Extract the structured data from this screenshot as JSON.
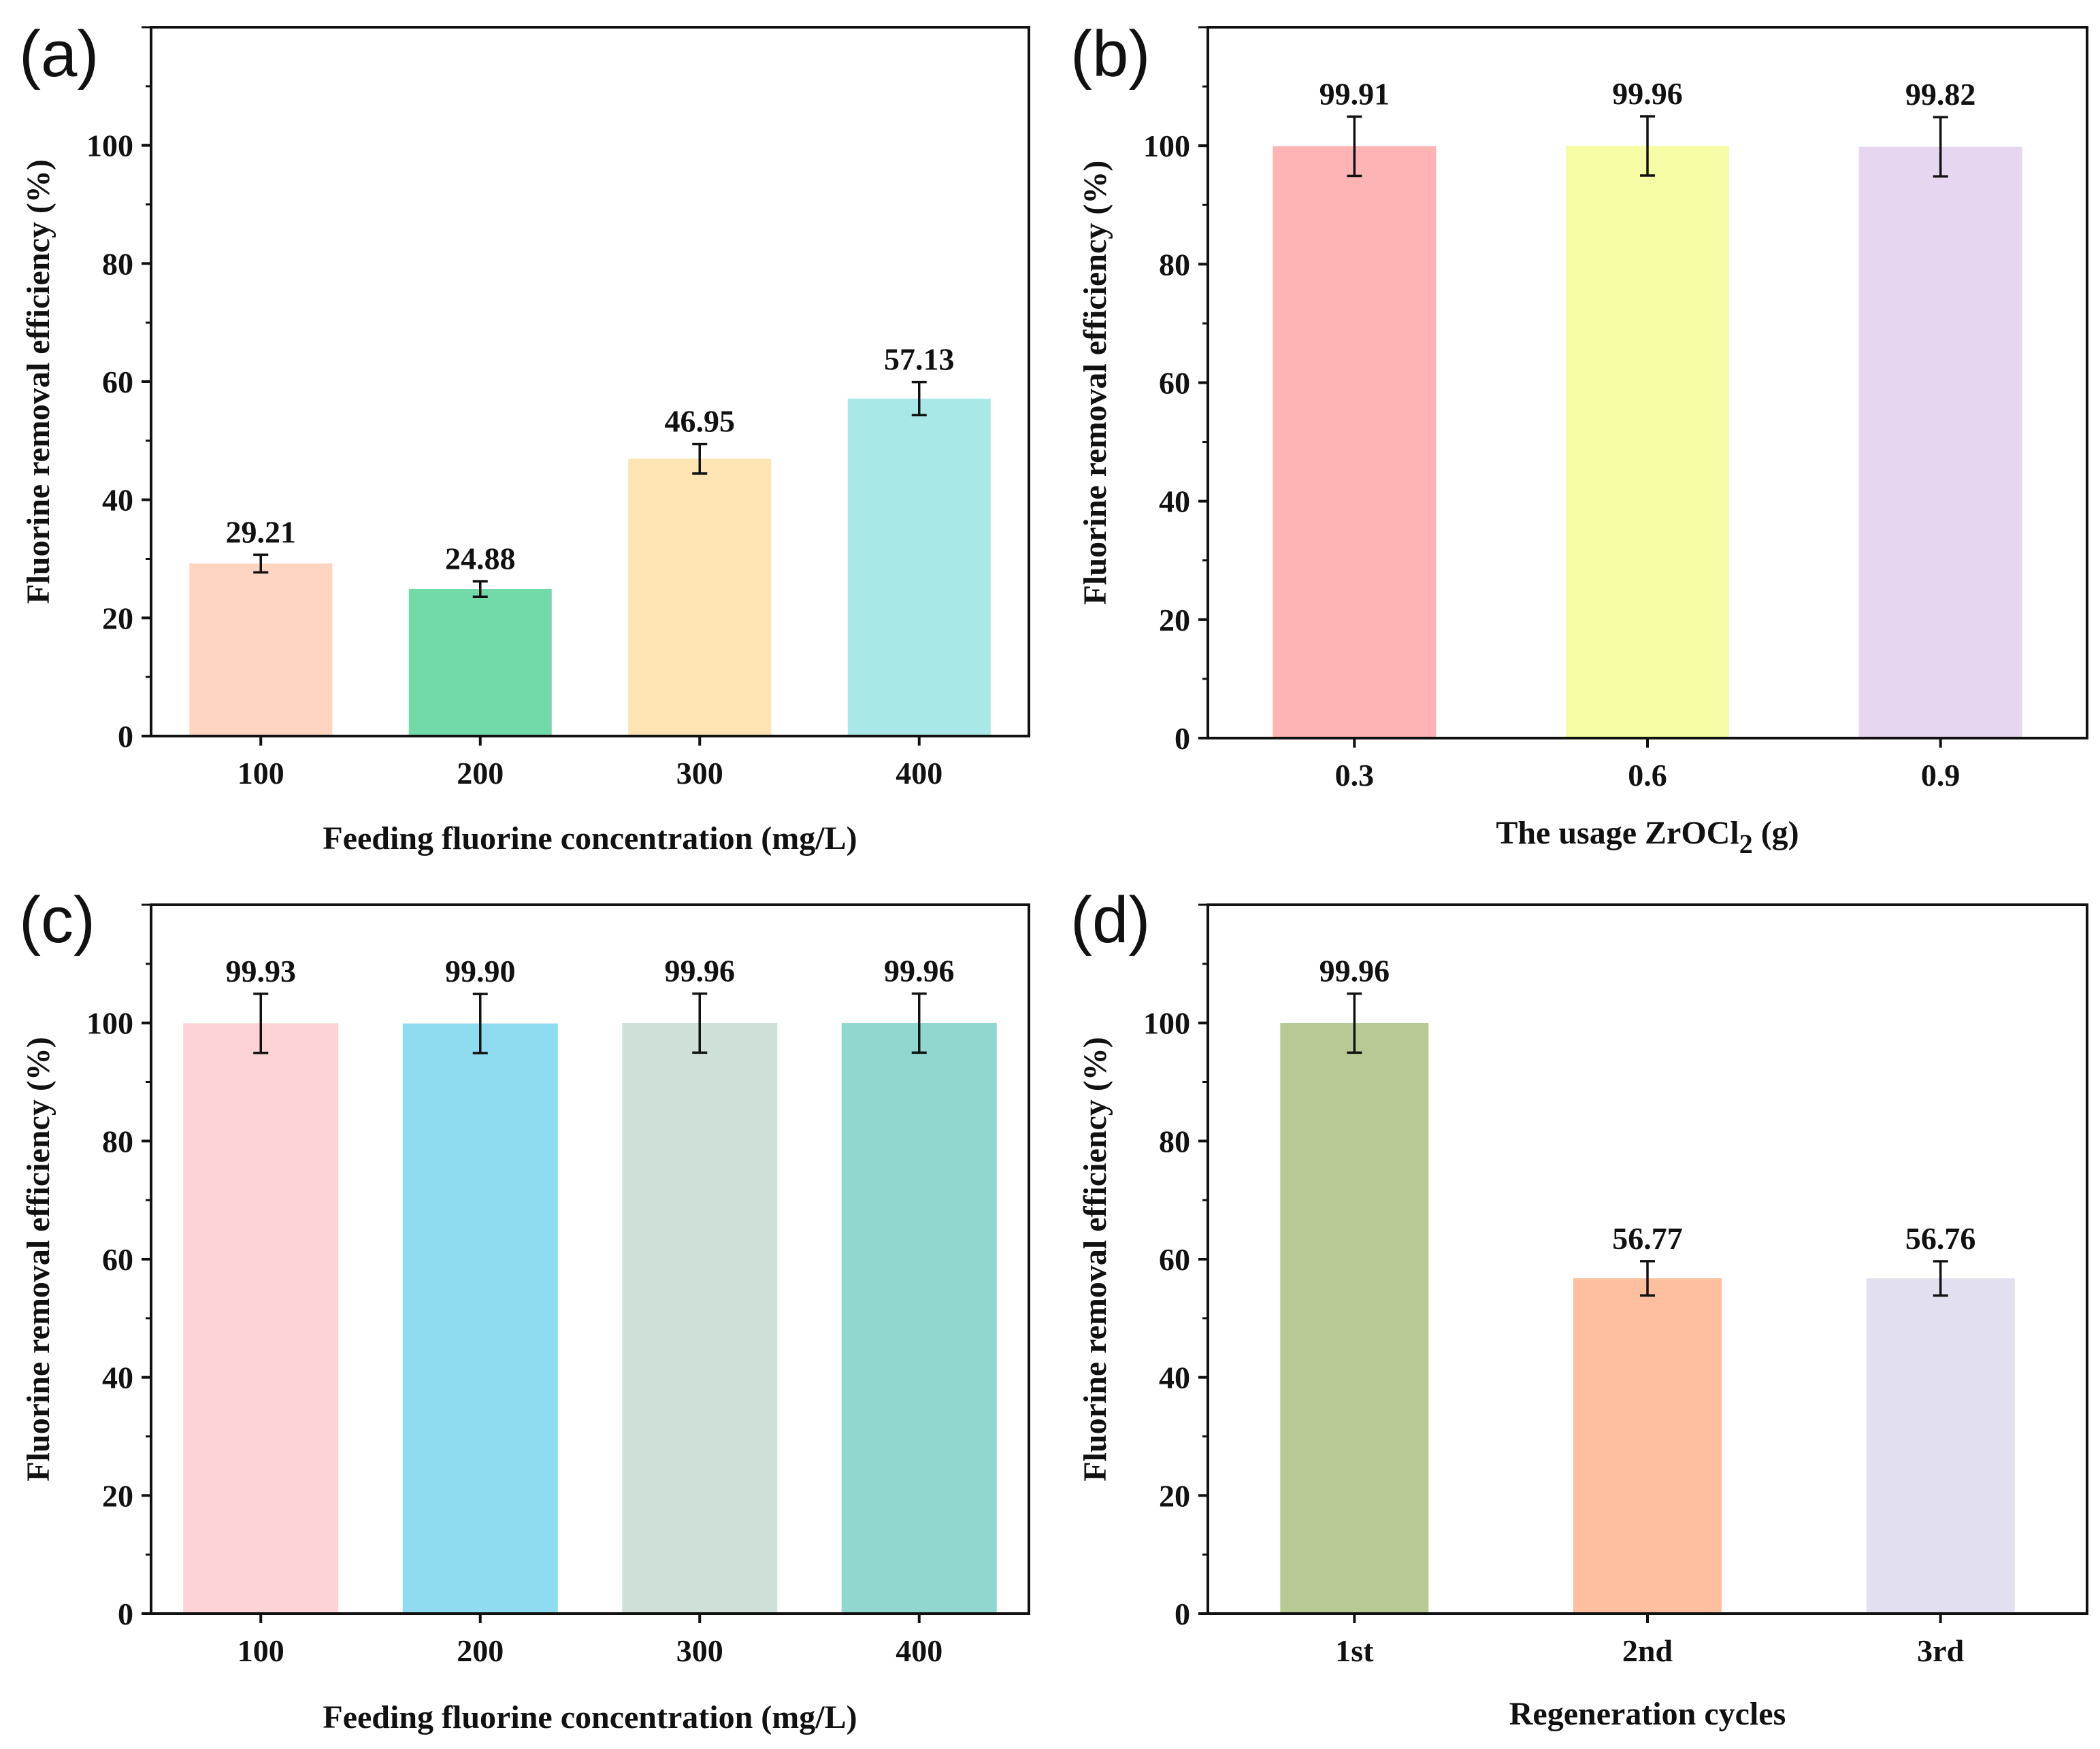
{
  "figure": {
    "description": "Four-panel bar chart figure of fluorine removal efficiency"
  },
  "chart_data": [
    {
      "panel": "(a)",
      "type": "bar",
      "title": "",
      "xlabel": "Feeding fluorine concentration (mg/L)",
      "ylabel": "Fluorine removal efficiency (%)",
      "categories": [
        "100",
        "200",
        "300",
        "400"
      ],
      "values": [
        29.21,
        24.88,
        46.95,
        57.13
      ],
      "labels": [
        "29.21",
        "24.88",
        "46.95",
        "57.13"
      ],
      "errors": [
        1.5,
        1.3,
        2.5,
        2.8
      ],
      "colors": [
        "#fdd5c1",
        "#72d9a8",
        "#fde4b3",
        "#a9e8e6"
      ],
      "ylim": [
        0,
        120
      ],
      "yticks": [
        0,
        20,
        40,
        60,
        80,
        100
      ],
      "grid": false
    },
    {
      "panel": "(b)",
      "type": "bar",
      "title": "",
      "xlabel": "The usage ZrOCl",
      "xlabel_sub": "2",
      "xlabel_suffix": " (g)",
      "ylabel": "Fluorine removal efficiency (%)",
      "categories": [
        "0.3",
        "0.6",
        "0.9"
      ],
      "values": [
        99.91,
        99.96,
        99.82
      ],
      "labels": [
        "99.91",
        "99.96",
        "99.82"
      ],
      "errors": [
        5,
        5,
        5
      ],
      "colors": [
        "#feb4b4",
        "#f6fca6",
        "#e6d6ef"
      ],
      "ylim": [
        0,
        120
      ],
      "yticks": [
        0,
        20,
        40,
        60,
        80,
        100
      ],
      "grid": false
    },
    {
      "panel": "(c)",
      "type": "bar",
      "title": "",
      "xlabel": "Feeding fluorine concentration (mg/L)",
      "ylabel": "Fluorine removal efficiency (%)",
      "categories": [
        "100",
        "200",
        "300",
        "400"
      ],
      "values": [
        99.93,
        99.9,
        99.96,
        99.96
      ],
      "labels": [
        "99.93",
        "99.90",
        "99.96",
        "99.96"
      ],
      "errors": [
        5,
        5,
        5,
        5
      ],
      "colors": [
        "#fdd3d5",
        "#8fdbf0",
        "#cfe0d8",
        "#8fd7cf"
      ],
      "ylim": [
        0,
        120
      ],
      "yticks": [
        0,
        20,
        40,
        60,
        80,
        100
      ],
      "grid": false
    },
    {
      "panel": "(d)",
      "type": "bar",
      "title": "",
      "xlabel": "Regeneration cycles",
      "ylabel": "Fluorine removal efficiency (%)",
      "categories": [
        "1st",
        "2nd",
        "3rd"
      ],
      "values": [
        99.96,
        56.77,
        56.76
      ],
      "labels": [
        "99.96",
        "56.77",
        "56.76"
      ],
      "errors": [
        5,
        2.9,
        2.9
      ],
      "colors": [
        "#b8c995",
        "#fdbfa0",
        "#e2e0f0"
      ],
      "ylim": [
        0,
        120
      ],
      "yticks": [
        0,
        20,
        40,
        60,
        80,
        100
      ],
      "grid": false
    }
  ]
}
